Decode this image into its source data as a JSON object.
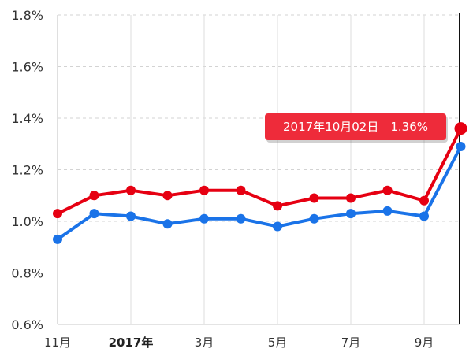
{
  "chart_data": {
    "type": "line",
    "title": "",
    "xlabel": "",
    "ylabel": "",
    "ylim": [
      0.6,
      1.8
    ],
    "y_ticks": [
      "0.6%",
      "0.8%",
      "1.0%",
      "1.2%",
      "1.4%",
      "1.6%",
      "1.8%"
    ],
    "y_tick_values": [
      0.6,
      0.8,
      1.0,
      1.2,
      1.4,
      1.6,
      1.8
    ],
    "x_tick_labels": [
      {
        "label": "11月",
        "index": 0,
        "bold": false
      },
      {
        "label": "2017年",
        "index": 2,
        "bold": true
      },
      {
        "label": "3月",
        "index": 4,
        "bold": false
      },
      {
        "label": "5月",
        "index": 6,
        "bold": false
      },
      {
        "label": "7月",
        "index": 8,
        "bold": false
      },
      {
        "label": "9月",
        "index": 10,
        "bold": false
      }
    ],
    "point_count": 12,
    "series": [
      {
        "name": "red",
        "color": "#e60012",
        "values": [
          1.03,
          1.1,
          1.12,
          1.1,
          1.12,
          1.12,
          1.06,
          1.09,
          1.09,
          1.12,
          1.08,
          1.36
        ]
      },
      {
        "name": "blue",
        "color": "#1a73e8",
        "values": [
          0.93,
          1.03,
          1.02,
          0.99,
          1.01,
          1.01,
          0.98,
          1.01,
          1.03,
          1.04,
          1.02,
          1.29
        ]
      }
    ],
    "tooltip": {
      "text": "2017年10月02日　1.36%",
      "series": "red",
      "index": 11,
      "color": "#ee2b3a"
    }
  }
}
